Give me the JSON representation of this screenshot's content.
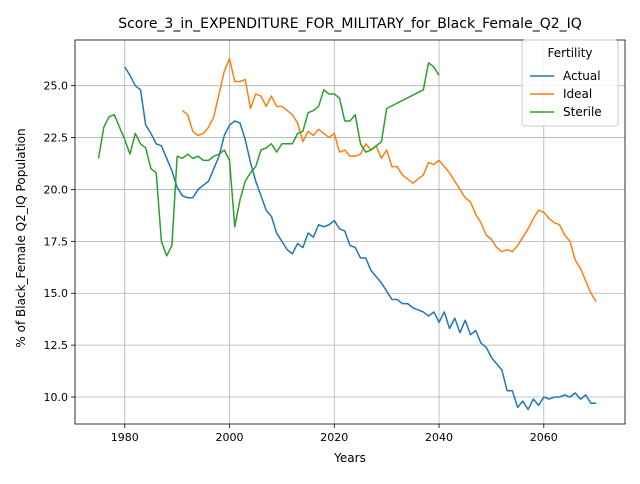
{
  "chart_data": {
    "type": "line",
    "title": "Score_3_in_EXPENDITURE_FOR_MILITARY_for_Black_Female_Q2_IQ",
    "xlabel": "Years",
    "ylabel": "% of Black_Female Q2_IQ Population",
    "xlim": [
      1970.5,
      2075.5
    ],
    "ylim": [
      8.7,
      27.2
    ],
    "xticks": [
      1980,
      2000,
      2020,
      2040,
      2060
    ],
    "yticks": [
      10.0,
      12.5,
      15.0,
      17.5,
      20.0,
      22.5,
      25.0
    ],
    "ytick_labels": [
      "10.0",
      "12.5",
      "15.0",
      "17.5",
      "20.0",
      "22.5",
      "25.0"
    ],
    "grid": true,
    "legend": {
      "title": "Fertility",
      "placement": "top-right"
    },
    "series": [
      {
        "name": "Actual",
        "color": "#1f77b4",
        "points": [
          [
            1980,
            25.9
          ],
          [
            1981,
            25.5
          ],
          [
            1982,
            25.0
          ],
          [
            1983,
            24.8
          ],
          [
            1984,
            23.1
          ],
          [
            1985,
            22.7
          ],
          [
            1986,
            22.2
          ],
          [
            1987,
            22.1
          ],
          [
            1988,
            21.5
          ],
          [
            1989,
            20.9
          ],
          [
            1990,
            20.1
          ],
          [
            1991,
            19.7
          ],
          [
            1992,
            19.6
          ],
          [
            1993,
            19.6
          ],
          [
            1994,
            20.0
          ],
          [
            1995,
            20.2
          ],
          [
            1996,
            20.4
          ],
          [
            1997,
            21.0
          ],
          [
            1998,
            21.6
          ],
          [
            1999,
            22.6
          ],
          [
            2000,
            23.1
          ],
          [
            2001,
            23.3
          ],
          [
            2002,
            23.2
          ],
          [
            2003,
            22.4
          ],
          [
            2004,
            21.3
          ],
          [
            2005,
            20.4
          ],
          [
            2006,
            19.7
          ],
          [
            2007,
            19.0
          ],
          [
            2008,
            18.7
          ],
          [
            2009,
            17.9
          ],
          [
            2010,
            17.5
          ],
          [
            2011,
            17.1
          ],
          [
            2012,
            16.9
          ],
          [
            2013,
            17.4
          ],
          [
            2014,
            17.2
          ],
          [
            2015,
            17.9
          ],
          [
            2016,
            17.7
          ],
          [
            2017,
            18.3
          ],
          [
            2018,
            18.2
          ],
          [
            2019,
            18.3
          ],
          [
            2020,
            18.5
          ],
          [
            2021,
            18.1
          ],
          [
            2022,
            18.0
          ],
          [
            2023,
            17.3
          ],
          [
            2024,
            17.2
          ],
          [
            2025,
            16.7
          ],
          [
            2026,
            16.7
          ],
          [
            2027,
            16.1
          ],
          [
            2028,
            15.8
          ],
          [
            2029,
            15.5
          ],
          [
            2030,
            15.1
          ],
          [
            2031,
            14.7
          ],
          [
            2032,
            14.7
          ],
          [
            2033,
            14.5
          ],
          [
            2034,
            14.5
          ],
          [
            2035,
            14.3
          ],
          [
            2036,
            14.2
          ],
          [
            2037,
            14.1
          ],
          [
            2038,
            13.9
          ],
          [
            2039,
            14.1
          ],
          [
            2040,
            13.6
          ],
          [
            2041,
            14.1
          ],
          [
            2042,
            13.3
          ],
          [
            2043,
            13.8
          ],
          [
            2044,
            13.1
          ],
          [
            2045,
            13.7
          ],
          [
            2046,
            13.0
          ],
          [
            2047,
            13.2
          ],
          [
            2048,
            12.6
          ],
          [
            2049,
            12.4
          ],
          [
            2050,
            11.9
          ],
          [
            2051,
            11.6
          ],
          [
            2052,
            11.3
          ],
          [
            2053,
            10.3
          ],
          [
            2054,
            10.3
          ],
          [
            2055,
            9.5
          ],
          [
            2056,
            9.8
          ],
          [
            2057,
            9.4
          ],
          [
            2058,
            9.9
          ],
          [
            2059,
            9.6
          ],
          [
            2060,
            10.0
          ],
          [
            2061,
            9.9
          ],
          [
            2062,
            10.0
          ],
          [
            2063,
            10.0
          ],
          [
            2064,
            10.1
          ],
          [
            2065,
            10.0
          ],
          [
            2066,
            10.2
          ],
          [
            2067,
            9.9
          ],
          [
            2068,
            10.1
          ],
          [
            2069,
            9.7
          ],
          [
            2070,
            9.7
          ]
        ]
      },
      {
        "name": "Ideal",
        "color": "#ff7f0e",
        "points": [
          [
            1991,
            23.8
          ],
          [
            1992,
            23.6
          ],
          [
            1993,
            22.8
          ],
          [
            1994,
            22.6
          ],
          [
            1995,
            22.7
          ],
          [
            1996,
            23.0
          ],
          [
            1997,
            23.5
          ],
          [
            1998,
            24.6
          ],
          [
            1999,
            25.7
          ],
          [
            2000,
            26.3
          ],
          [
            2001,
            25.2
          ],
          [
            2002,
            25.2
          ],
          [
            2003,
            25.3
          ],
          [
            2004,
            23.9
          ],
          [
            2005,
            24.6
          ],
          [
            2006,
            24.5
          ],
          [
            2007,
            24.0
          ],
          [
            2008,
            24.5
          ],
          [
            2009,
            24.0
          ],
          [
            2010,
            24.0
          ],
          [
            2011,
            23.8
          ],
          [
            2012,
            23.6
          ],
          [
            2013,
            23.2
          ],
          [
            2014,
            22.3
          ],
          [
            2015,
            22.8
          ],
          [
            2016,
            22.6
          ],
          [
            2017,
            22.9
          ],
          [
            2018,
            22.7
          ],
          [
            2019,
            22.5
          ],
          [
            2020,
            22.7
          ],
          [
            2021,
            21.8
          ],
          [
            2022,
            21.9
          ],
          [
            2023,
            21.6
          ],
          [
            2024,
            21.6
          ],
          [
            2025,
            21.7
          ],
          [
            2026,
            22.2
          ],
          [
            2027,
            21.9
          ],
          [
            2028,
            22.1
          ],
          [
            2029,
            21.5
          ],
          [
            2030,
            21.9
          ],
          [
            2031,
            21.1
          ],
          [
            2032,
            21.1
          ],
          [
            2033,
            20.7
          ],
          [
            2034,
            20.5
          ],
          [
            2035,
            20.3
          ],
          [
            2036,
            20.5
          ],
          [
            2037,
            20.7
          ],
          [
            2038,
            21.3
          ],
          [
            2039,
            21.2
          ],
          [
            2040,
            21.4
          ],
          [
            2041,
            21.1
          ],
          [
            2042,
            20.8
          ],
          [
            2043,
            20.4
          ],
          [
            2044,
            20.0
          ],
          [
            2045,
            19.6
          ],
          [
            2046,
            19.4
          ],
          [
            2047,
            18.8
          ],
          [
            2048,
            18.4
          ],
          [
            2049,
            17.8
          ],
          [
            2050,
            17.6
          ],
          [
            2051,
            17.2
          ],
          [
            2052,
            17.0
          ],
          [
            2053,
            17.1
          ],
          [
            2054,
            17.0
          ],
          [
            2055,
            17.3
          ],
          [
            2056,
            17.7
          ],
          [
            2057,
            18.1
          ],
          [
            2058,
            18.6
          ],
          [
            2059,
            19.0
          ],
          [
            2060,
            18.9
          ],
          [
            2061,
            18.6
          ],
          [
            2062,
            18.4
          ],
          [
            2063,
            18.3
          ],
          [
            2064,
            17.8
          ],
          [
            2065,
            17.5
          ],
          [
            2066,
            16.6
          ],
          [
            2067,
            16.2
          ],
          [
            2068,
            15.6
          ],
          [
            2069,
            15.0
          ],
          [
            2070,
            14.6
          ]
        ]
      },
      {
        "name": "Sterile",
        "color": "#2ca02c",
        "points": [
          [
            1975,
            21.5
          ],
          [
            1976,
            23.0
          ],
          [
            1977,
            23.5
          ],
          [
            1978,
            23.6
          ],
          [
            1979,
            23.0
          ],
          [
            1980,
            22.4
          ],
          [
            1981,
            21.7
          ],
          [
            1982,
            22.7
          ],
          [
            1983,
            22.2
          ],
          [
            1984,
            22.0
          ],
          [
            1985,
            21.0
          ],
          [
            1986,
            20.8
          ],
          [
            1987,
            17.5
          ],
          [
            1988,
            16.8
          ],
          [
            1989,
            17.3
          ],
          [
            1990,
            21.6
          ],
          [
            1991,
            21.5
          ],
          [
            1992,
            21.7
          ],
          [
            1993,
            21.5
          ],
          [
            1994,
            21.6
          ],
          [
            1995,
            21.4
          ],
          [
            1996,
            21.4
          ],
          [
            1997,
            21.6
          ],
          [
            1998,
            21.7
          ],
          [
            1999,
            21.9
          ],
          [
            2000,
            21.4
          ],
          [
            2001,
            18.2
          ],
          [
            2002,
            19.5
          ],
          [
            2003,
            20.4
          ],
          [
            2004,
            20.8
          ],
          [
            2005,
            21.1
          ],
          [
            2006,
            21.9
          ],
          [
            2007,
            22.0
          ],
          [
            2008,
            22.2
          ],
          [
            2009,
            21.8
          ],
          [
            2010,
            22.2
          ],
          [
            2011,
            22.2
          ],
          [
            2012,
            22.2
          ],
          [
            2013,
            22.7
          ],
          [
            2014,
            22.8
          ],
          [
            2015,
            23.7
          ],
          [
            2016,
            23.8
          ],
          [
            2017,
            24.0
          ],
          [
            2018,
            24.8
          ],
          [
            2019,
            24.6
          ],
          [
            2020,
            24.6
          ],
          [
            2021,
            24.4
          ],
          [
            2022,
            23.3
          ],
          [
            2023,
            23.3
          ],
          [
            2024,
            23.6
          ],
          [
            2025,
            22.2
          ],
          [
            2026,
            21.8
          ],
          [
            2027,
            21.9
          ],
          [
            2028,
            22.1
          ],
          [
            2029,
            22.3
          ],
          [
            2030,
            23.9
          ],
          [
            2037,
            24.8
          ],
          [
            2038,
            26.1
          ],
          [
            2039,
            25.9
          ],
          [
            2040,
            25.5
          ]
        ]
      }
    ]
  }
}
